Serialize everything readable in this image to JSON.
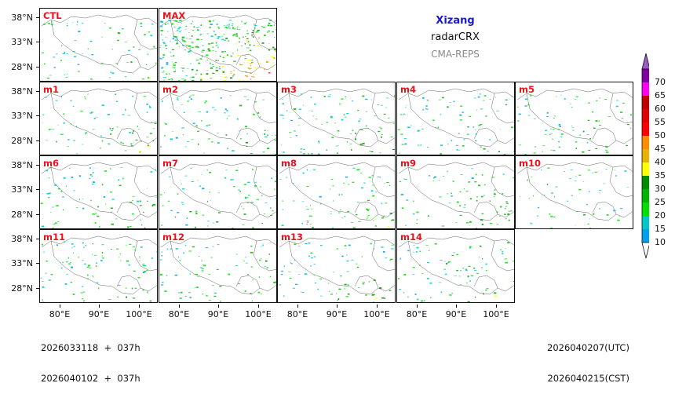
{
  "header": {
    "region": "Xizang",
    "product": "radarCRX",
    "model": "CMA-REPS"
  },
  "panels": {
    "ctl": "CTL",
    "max": "MAX",
    "m1": "m1",
    "m2": "m2",
    "m3": "m3",
    "m4": "m4",
    "m5": "m5",
    "m6": "m6",
    "m7": "m7",
    "m8": "m8",
    "m9": "m9",
    "m10": "m10",
    "m11": "m11",
    "m12": "m12",
    "m13": "m13",
    "m14": "m14"
  },
  "axes": {
    "lat_ticks": [
      "38°N",
      "33°N",
      "28°N"
    ],
    "lon_ticks": [
      "80°E",
      "90°E",
      "100°E"
    ]
  },
  "footer": {
    "init_utc": "2026033118  +  037h",
    "init_cst": "2026040102  +  037h",
    "valid_utc": "2026040207(UTC)",
    "valid_cst": "2026040215(CST)"
  },
  "colorbar": {
    "labels": [
      "70",
      "65",
      "60",
      "55",
      "50",
      "45",
      "40",
      "35",
      "30",
      "25",
      "20",
      "15",
      "10"
    ],
    "colors": [
      "#9a5cc8",
      "#8000a0",
      "#ff00f0",
      "#c00000",
      "#e00000",
      "#ff0000",
      "#ff8c00",
      "#e6b400",
      "#ffff00",
      "#008c00",
      "#00b400",
      "#00e000",
      "#00c8c8",
      "#00a0f0"
    ],
    "under_color": "#ffffff"
  }
}
